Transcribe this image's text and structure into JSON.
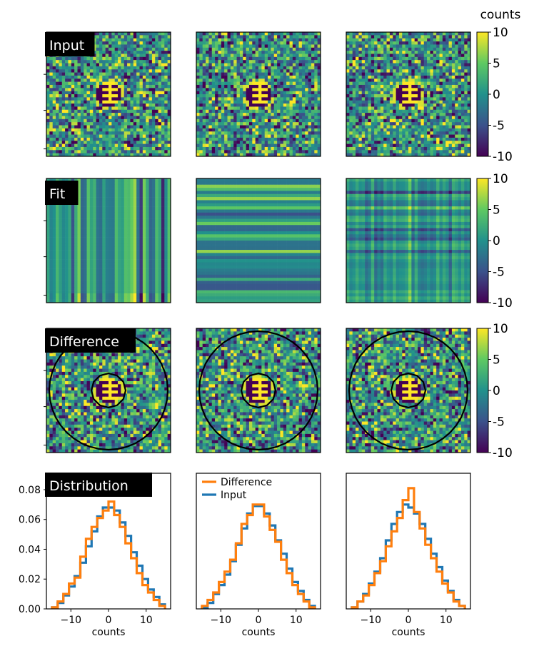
{
  "figure": {
    "colorbar_title": "counts",
    "row_labels": [
      "Input",
      "Fit",
      "Difference",
      "Distribution"
    ],
    "colormap": "viridis",
    "colormap_stops": [
      "#440154",
      "#3b528b",
      "#21918c",
      "#5ec962",
      "#fde725"
    ],
    "mask_color": "#440154",
    "contour_color": "#000000"
  },
  "chart_data": [
    {
      "type": "heatmap",
      "row": "Input",
      "description_values": "noisy image, masked dark center with bright ring",
      "colorbar": {
        "min": -10,
        "max": 10,
        "ticks": [
          10,
          5,
          0,
          -5,
          -10
        ],
        "tick_labels": [
          "10",
          "5",
          "0",
          "-5",
          "-10"
        ]
      }
    },
    {
      "type": "heatmap",
      "row": "Fit",
      "colorbar": {
        "min": -10,
        "max": 10,
        "ticks": [
          10,
          5,
          0,
          -5,
          -10
        ],
        "tick_labels": [
          "10",
          "5",
          "0",
          "-5",
          "-10"
        ]
      }
    },
    {
      "type": "heatmap",
      "row": "Difference",
      "colorbar": {
        "min": -10,
        "max": 10,
        "ticks": [
          10,
          5,
          0,
          -5,
          -10
        ],
        "tick_labels": [
          "10",
          "5",
          "0",
          "-5",
          "-10"
        ]
      }
    },
    {
      "type": "line",
      "row": "Distribution",
      "xlabel": "counts",
      "xticks": [
        -10,
        0,
        10
      ],
      "xtick_labels": [
        "−10",
        "0",
        "10"
      ],
      "yticks": [
        0.0,
        0.02,
        0.04,
        0.06,
        0.08
      ],
      "ytick_labels": [
        "0.00",
        "0.02",
        "0.04",
        "0.06",
        "0.08"
      ],
      "xlim": [
        -16.5,
        16.5
      ],
      "ylim": [
        0,
        0.091
      ],
      "legend": {
        "entries": [
          "Difference",
          "Input"
        ],
        "placement": "top-left"
      },
      "bin_edges": [
        -15,
        -13.5,
        -12,
        -10.5,
        -9,
        -7.5,
        -6,
        -4.5,
        -3,
        -1.5,
        0,
        1.5,
        3,
        4.5,
        6,
        7.5,
        9,
        10.5,
        12,
        13.5,
        15
      ],
      "panels": [
        {
          "series": [
            {
              "name": "Input",
              "color": "#1f77b4",
              "values": [
                0.001,
                0.004,
                0.009,
                0.015,
                0.022,
                0.031,
                0.042,
                0.052,
                0.062,
                0.068,
                0.068,
                0.066,
                0.058,
                0.049,
                0.038,
                0.029,
                0.02,
                0.013,
                0.008,
                0.003
              ]
            },
            {
              "name": "Difference",
              "color": "#ff7f0e",
              "values": [
                0.001,
                0.005,
                0.01,
                0.017,
                0.021,
                0.035,
                0.047,
                0.055,
                0.061,
                0.066,
                0.072,
                0.063,
                0.055,
                0.044,
                0.034,
                0.024,
                0.016,
                0.011,
                0.006,
                0.002
              ]
            }
          ]
        },
        {
          "series": [
            {
              "name": "Input",
              "color": "#1f77b4",
              "values": [
                0.001,
                0.004,
                0.01,
                0.016,
                0.023,
                0.032,
                0.043,
                0.054,
                0.064,
                0.069,
                0.069,
                0.064,
                0.056,
                0.046,
                0.037,
                0.027,
                0.018,
                0.012,
                0.006,
                0.002
              ]
            },
            {
              "name": "Difference",
              "color": "#ff7f0e",
              "values": [
                0.002,
                0.006,
                0.011,
                0.018,
                0.025,
                0.033,
                0.044,
                0.057,
                0.063,
                0.07,
                0.07,
                0.062,
                0.053,
                0.045,
                0.033,
                0.024,
                0.016,
                0.01,
                0.005,
                0.001
              ]
            }
          ]
        },
        {
          "series": [
            {
              "name": "Input",
              "color": "#1f77b4",
              "values": [
                0.001,
                0.005,
                0.01,
                0.017,
                0.025,
                0.034,
                0.046,
                0.057,
                0.065,
                0.07,
                0.068,
                0.064,
                0.057,
                0.047,
                0.037,
                0.028,
                0.019,
                0.012,
                0.006,
                0.002
              ]
            },
            {
              "name": "Difference",
              "color": "#ff7f0e",
              "values": [
                0.001,
                0.005,
                0.009,
                0.016,
                0.024,
                0.032,
                0.042,
                0.052,
                0.061,
                0.073,
                0.081,
                0.065,
                0.054,
                0.043,
                0.034,
                0.025,
                0.017,
                0.011,
                0.005,
                0.002
              ]
            }
          ]
        }
      ]
    }
  ]
}
